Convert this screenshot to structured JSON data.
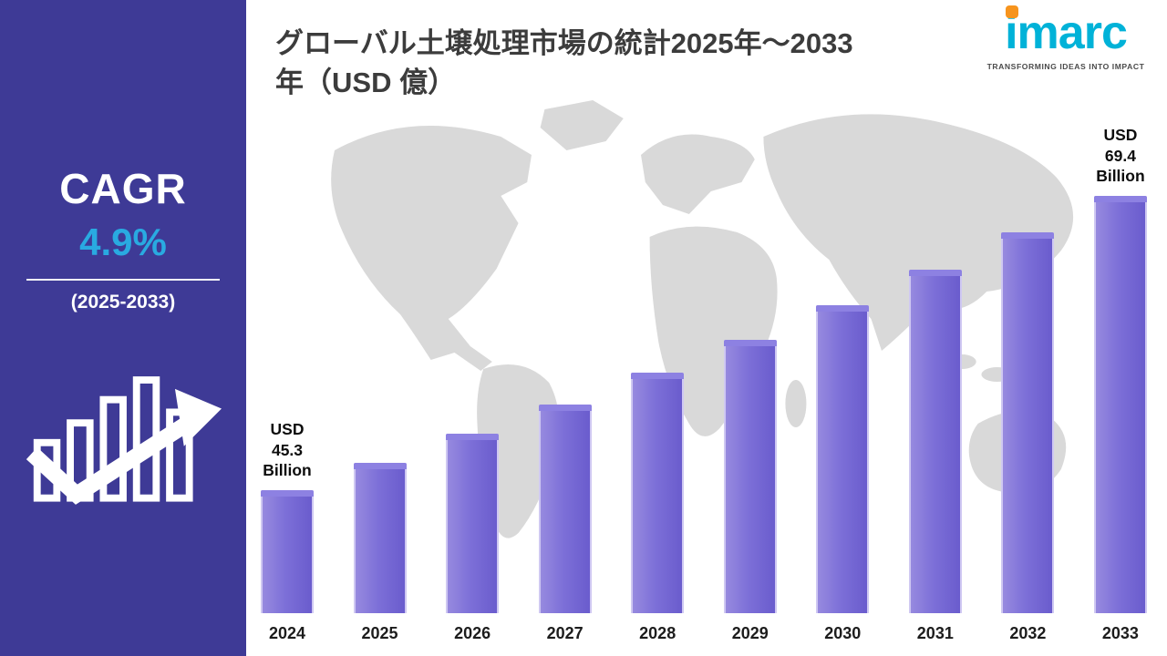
{
  "sidebar": {
    "cagr_label": "CAGR",
    "cagr_value": "4.9%",
    "cagr_period": "(2025-2033)"
  },
  "header": {
    "title_line1": "グローバル土壌処理市場の統計2025年～2033",
    "title_line2": "年（USD 億）"
  },
  "logo": {
    "text": "imarc",
    "tagline": "TRANSFORMING IDEAS INTO IMPACT"
  },
  "chart_data": {
    "type": "bar",
    "title": "グローバル土壌処理市場の統計2025年～2033年（USD 億）",
    "unit": "USD Billion",
    "categories": [
      "2024",
      "2025",
      "2026",
      "2027",
      "2028",
      "2029",
      "2030",
      "2031",
      "2032",
      "2033"
    ],
    "values": [
      45.3,
      47.5,
      49.9,
      52.3,
      54.9,
      57.6,
      60.4,
      63.3,
      66.4,
      69.4
    ],
    "annotations": [
      {
        "index": 0,
        "line1": "USD 45.3",
        "line2": "Billion"
      },
      {
        "index": 9,
        "line1": "USD 69.4",
        "line2": "Billion"
      }
    ],
    "xlabel": "",
    "ylabel": "",
    "legend": null,
    "grid": false
  },
  "colors": {
    "sidebar_bg": "#3e3a96",
    "accent_cyan": "#29aae1",
    "bar_main": "#7165d4",
    "bar_border": "#cfc8f2",
    "map_gray": "#d9d9d9",
    "logo_cyan": "#00b2d8",
    "logo_orange": "#f7941d"
  }
}
